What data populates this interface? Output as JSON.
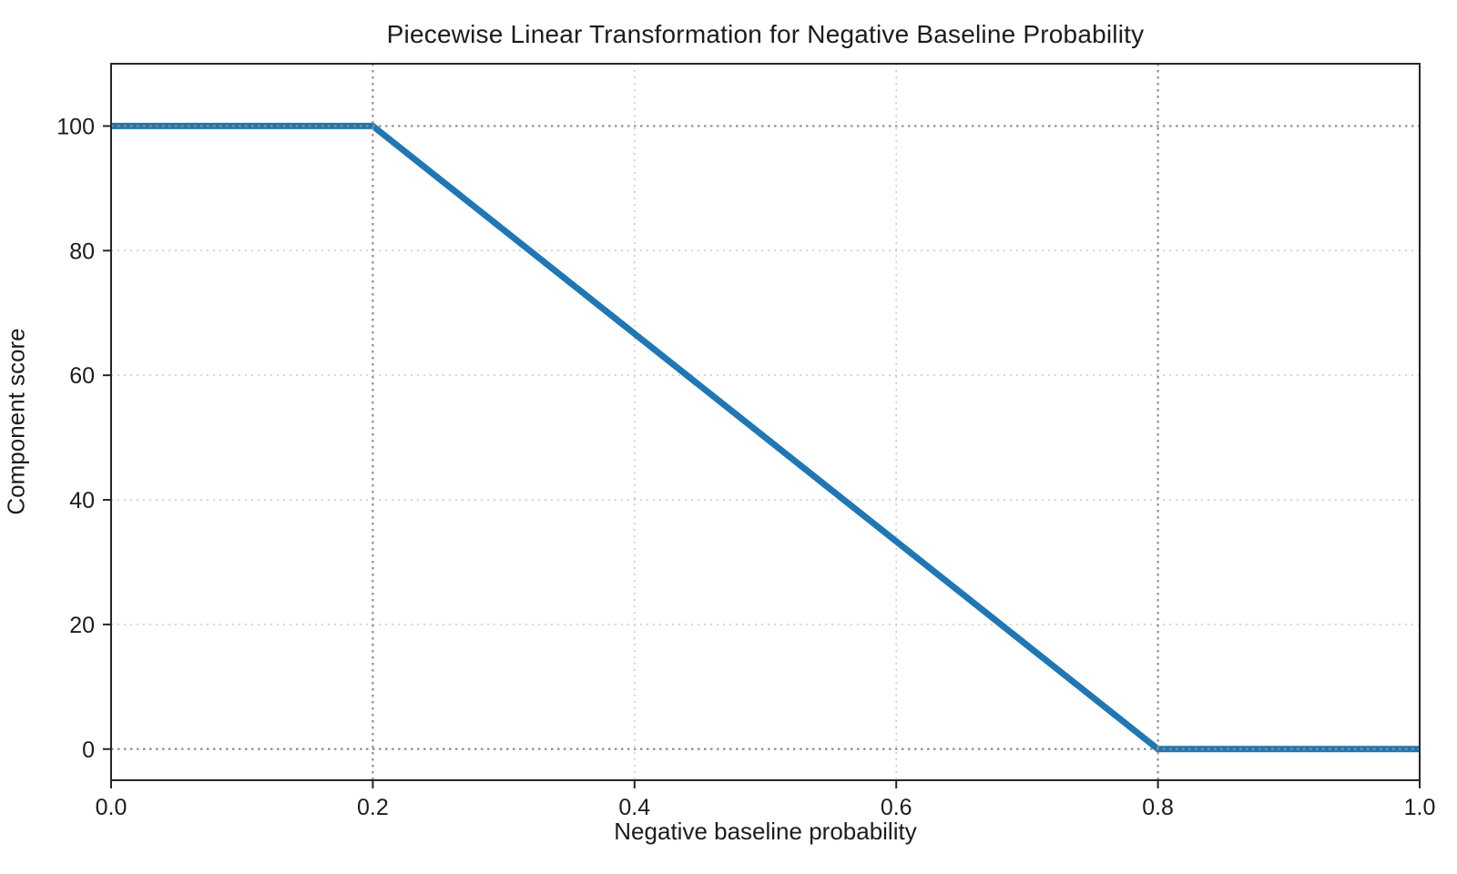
{
  "chart_data": {
    "type": "line",
    "title": "Piecewise Linear Transformation for Negative Baseline Probability",
    "xlabel": "Negative baseline probability",
    "ylabel": "Component score",
    "xlim": [
      0.0,
      1.0
    ],
    "ylim": [
      -5,
      110
    ],
    "xticks": [
      0.0,
      0.2,
      0.4,
      0.6,
      0.8,
      1.0
    ],
    "xtick_labels": [
      "0.0",
      "0.2",
      "0.4",
      "0.6",
      "0.8",
      "1.0"
    ],
    "yticks": [
      0,
      20,
      40,
      60,
      80,
      100
    ],
    "ytick_labels": [
      "0",
      "20",
      "40",
      "60",
      "80",
      "100"
    ],
    "grid": {
      "show": true,
      "color": "#c9c9c9",
      "style": "dotted"
    },
    "reference_lines": {
      "x": [
        0.2,
        0.8
      ],
      "y": [
        0,
        100
      ],
      "color": "#8f8f8f",
      "style": "dotted"
    },
    "series": [
      {
        "name": "piecewise-transform",
        "x": [
          0.0,
          0.2,
          0.8,
          1.0
        ],
        "y": [
          100,
          100,
          0,
          0
        ],
        "color": "#1f77b4",
        "linewidth": 7
      }
    ],
    "legend": {
      "show": false
    },
    "spine_color": "#262626"
  }
}
